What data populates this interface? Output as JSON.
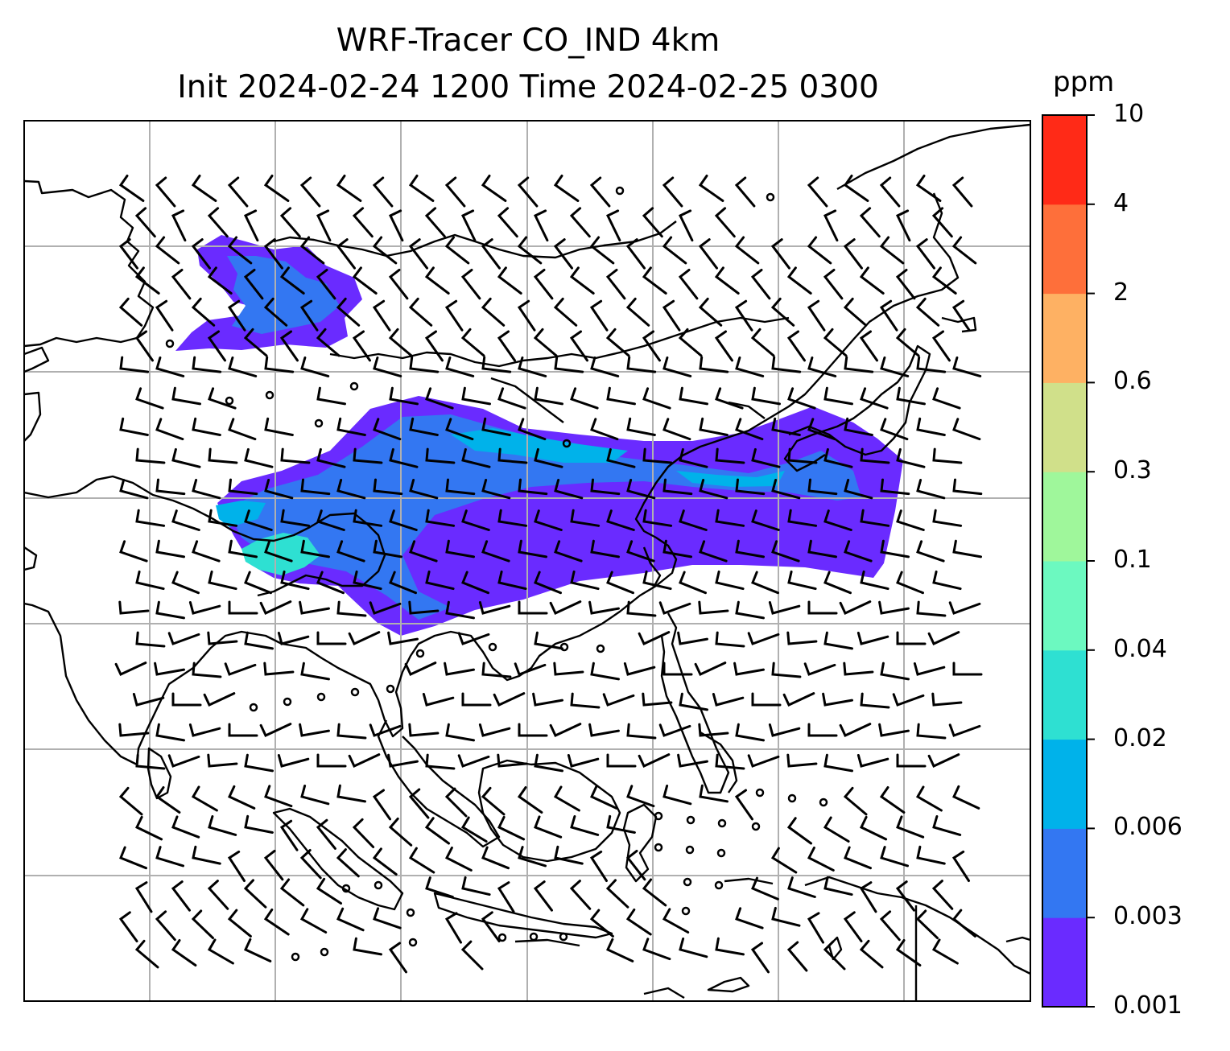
{
  "title": {
    "line1": "WRF-Tracer CO_IND 4km",
    "line2": "Init 2024-02-24 1200 Time 2024-02-25 0300"
  },
  "colorbar": {
    "unit": "ppm",
    "levels": [
      "0.001",
      "0.003",
      "0.006",
      "0.02",
      "0.04",
      "0.1",
      "0.3",
      "0.6",
      "2",
      "4",
      "10"
    ],
    "colors": [
      "#6a2bff",
      "#3377f2",
      "#00b2ea",
      "#2ee0d2",
      "#6cf9c0",
      "#9ff79b",
      "#d0e08a",
      "#feb163",
      "#fe6f3a",
      "#ff2a17"
    ]
  },
  "map": {
    "gridlines": true,
    "coastline_color": "#000000",
    "grid_color": "#b0b0b0",
    "wind_barb_color": "#000000"
  }
}
